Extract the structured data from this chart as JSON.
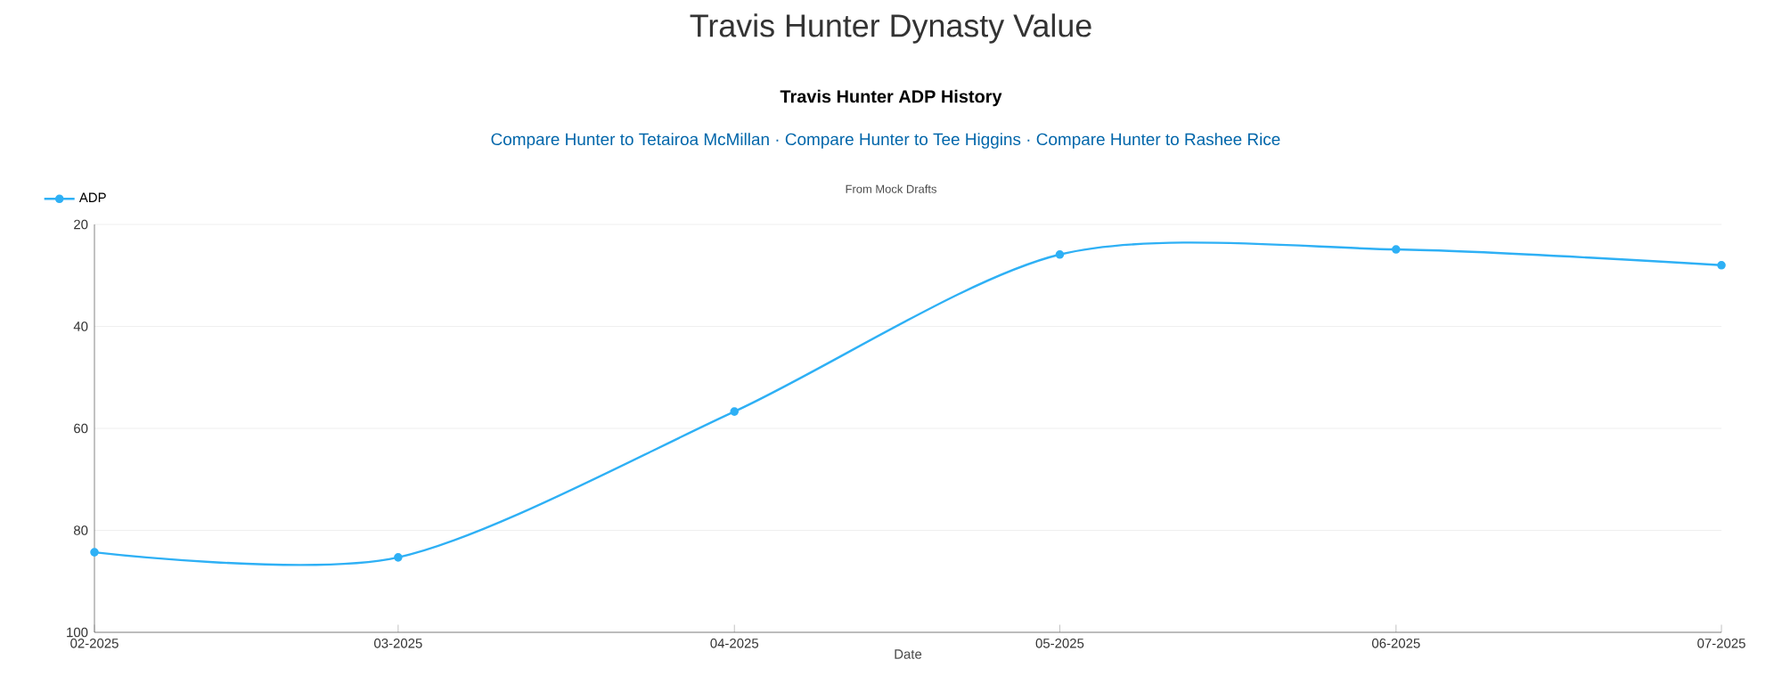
{
  "chart_data": {
    "type": "line",
    "title": "Travis Hunter Dynasty Value",
    "subtitle": "Travis Hunter ADP History",
    "annotations": [
      "Compare Hunter to Tetairoa McMillan · Compare Hunter to Tee Higgins · Compare Hunter to Rashee Rice",
      "From Mock Drafts"
    ],
    "xlabel": "Date",
    "x": [
      "2025-02",
      "2025-03",
      "2025-04",
      "2025-05",
      "2025-06",
      "2025-07"
    ],
    "series": [
      {
        "name": "ADP",
        "color": "#2eb0f5",
        "values": [
          84.3,
          85.3,
          56.7,
          25.9,
          24.9,
          28
        ]
      }
    ],
    "xlim": [
      "2025-02",
      "2025-07"
    ],
    "xticks": [
      {
        "value": "2025-02",
        "label": "02-2025"
      },
      {
        "value": "2025-03",
        "label": "03-2025"
      },
      {
        "value": "2025-04",
        "label": "04-2025"
      },
      {
        "value": "2025-05",
        "label": "05-2025"
      },
      {
        "value": "2025-06",
        "label": "06-2025"
      },
      {
        "value": "2025-07",
        "label": "07-2025"
      }
    ],
    "ylim": [
      100,
      20
    ],
    "yticks": [
      20,
      40,
      60,
      80,
      100
    ],
    "grid": "y",
    "legend": "top left",
    "marker": "circle",
    "line_style": "solid"
  }
}
